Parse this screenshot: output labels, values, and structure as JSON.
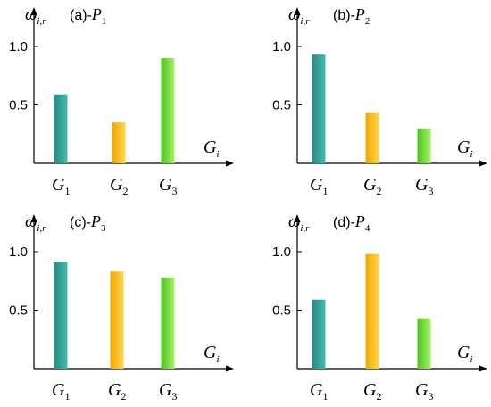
{
  "chart_data": [
    {
      "type": "bar",
      "panel_label": "(a)-",
      "panel_var": "P",
      "panel_sub": "1",
      "y_symbol": "ω",
      "y_sub": "i,r",
      "x_symbol": "G",
      "x_sub": "i",
      "categories": [
        {
          "sym": "G",
          "sub": "1"
        },
        {
          "sym": "G",
          "sub": "2"
        },
        {
          "sym": "G",
          "sub": "3"
        }
      ],
      "values": [
        0.59,
        0.35,
        0.9
      ],
      "yticks": [
        "0.5",
        "1.0"
      ],
      "ylim": [
        0,
        1.1
      ]
    },
    {
      "type": "bar",
      "panel_label": "(b)-",
      "panel_var": "P",
      "panel_sub": "2",
      "y_symbol": "ω",
      "y_sub": "i,r",
      "x_symbol": "G",
      "x_sub": "i",
      "categories": [
        {
          "sym": "G",
          "sub": "1"
        },
        {
          "sym": "G",
          "sub": "2"
        },
        {
          "sym": "G",
          "sub": "3"
        }
      ],
      "values": [
        0.93,
        0.43,
        0.3
      ],
      "yticks": [
        "0.5",
        "1.0"
      ],
      "ylim": [
        0,
        1.1
      ]
    },
    {
      "type": "bar",
      "panel_label": "(c)-",
      "panel_var": "P",
      "panel_sub": "3",
      "y_symbol": "ω",
      "y_sub": "i,r",
      "x_symbol": "G",
      "x_sub": "i",
      "categories": [
        {
          "sym": "G",
          "sub": "1"
        },
        {
          "sym": "G",
          "sub": "2"
        },
        {
          "sym": "G",
          "sub": "3"
        }
      ],
      "values": [
        0.91,
        0.83,
        0.78
      ],
      "yticks": [
        "0.5",
        "1.0"
      ],
      "ylim": [
        0,
        1.1
      ]
    },
    {
      "type": "bar",
      "panel_label": "(d)-",
      "panel_var": "P",
      "panel_sub": "4",
      "y_symbol": "ω",
      "y_sub": "i,r",
      "x_symbol": "G",
      "x_sub": "i",
      "categories": [
        {
          "sym": "G",
          "sub": "1"
        },
        {
          "sym": "G",
          "sub": "2"
        },
        {
          "sym": "G",
          "sub": "3"
        }
      ],
      "values": [
        0.59,
        0.98,
        0.43
      ],
      "yticks": [
        "0.5",
        "1.0"
      ],
      "ylim": [
        0,
        1.1
      ]
    }
  ],
  "colors": {
    "bar_g1_dark": "#2a8a82",
    "bar_g1_light": "#3fbcae",
    "bar_g2_dark": "#f2a500",
    "bar_g2_light": "#ffd84a",
    "bar_g3_dark": "#49c41a",
    "bar_g3_light": "#a9f26a",
    "axis": "#000000"
  }
}
